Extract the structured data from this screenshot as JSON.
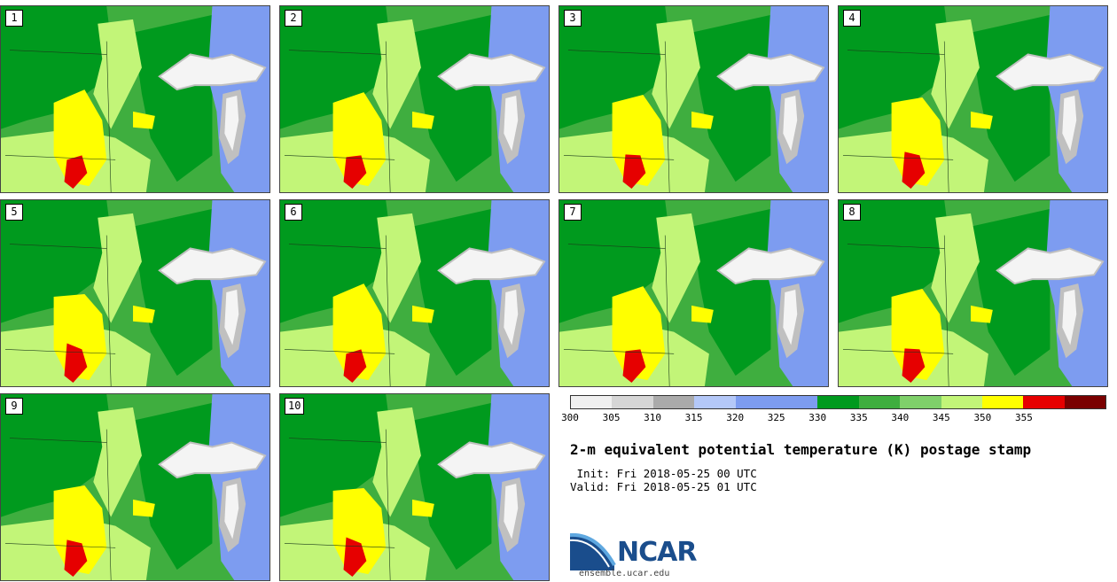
{
  "title": "2-m equivalent potential temperature (K) postage stamp",
  "init": " Init: Fri 2018-05-25 00 UTC",
  "valid": "Valid: Fri 2018-05-25 01 UTC",
  "logo": {
    "name": "NCAR",
    "url": "ensemble.ucar.edu"
  },
  "members": [
    "1",
    "2",
    "3",
    "4",
    "5",
    "6",
    "7",
    "8",
    "9",
    "10"
  ],
  "colorbar": {
    "labels": [
      "300",
      "305",
      "310",
      "315",
      "320",
      "325",
      "330",
      "335",
      "340",
      "345",
      "350",
      "355"
    ],
    "colors": [
      "#f0f0f0",
      "#d6d6d6",
      "#aaaaaa",
      "#b4c8f8",
      "#7d9cf0",
      "#7d9cf0",
      "#009a1e",
      "#3fae3f",
      "#7fd06a",
      "#c2f578",
      "#ffff00",
      "#e60000",
      "#7a0000"
    ]
  },
  "colors": {
    "lake": "#f4f4f4",
    "lake_shade": "#c0c0c0",
    "east_blue": "#7d9cf0",
    "dark_green": "#009a1e",
    "mid_green": "#3fae3f",
    "light_green": "#c2f578",
    "yellow": "#ffff00",
    "red": "#e60000"
  }
}
